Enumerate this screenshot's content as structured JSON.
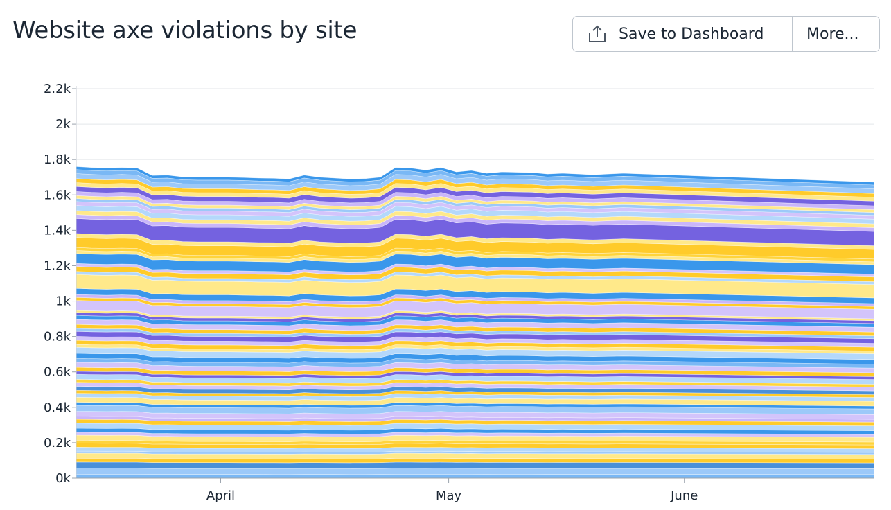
{
  "header": {
    "title": "Website axe violations by site",
    "save_label": "Save to Dashboard",
    "more_label": "More...",
    "save_icon": "upload-icon"
  },
  "chart_data": {
    "type": "area",
    "stacked": true,
    "title": "Website axe violations by site",
    "xlabel": "",
    "ylabel": "",
    "ylim": [
      0,
      2200
    ],
    "yticks": [
      {
        "value": 0,
        "label": "0k"
      },
      {
        "value": 200,
        "label": "0.2k"
      },
      {
        "value": 400,
        "label": "0.4k"
      },
      {
        "value": 600,
        "label": "0.6k"
      },
      {
        "value": 800,
        "label": "0.8k"
      },
      {
        "value": 1000,
        "label": "1k"
      },
      {
        "value": 1200,
        "label": "1.2k"
      },
      {
        "value": 1400,
        "label": "1.4k"
      },
      {
        "value": 1600,
        "label": "1.6k"
      },
      {
        "value": 1800,
        "label": "1.8k"
      },
      {
        "value": 2000,
        "label": "2k"
      },
      {
        "value": 2200,
        "label": "2.2k"
      }
    ],
    "xlim": [
      "2023-03-13",
      "2023-06-26"
    ],
    "xticks": [
      {
        "value": "2023-04-01",
        "label": "April"
      },
      {
        "value": "2023-05-01",
        "label": "May"
      },
      {
        "value": "2023-06-01",
        "label": "June"
      }
    ],
    "grid": true,
    "legend": "none",
    "x": [
      "2023-03-13",
      "2023-03-15",
      "2023-03-17",
      "2023-03-19",
      "2023-03-21",
      "2023-03-23",
      "2023-03-25",
      "2023-03-27",
      "2023-03-29",
      "2023-03-31",
      "2023-04-02",
      "2023-04-04",
      "2023-04-06",
      "2023-04-08",
      "2023-04-10",
      "2023-04-12",
      "2023-04-14",
      "2023-04-16",
      "2023-04-18",
      "2023-04-20",
      "2023-04-22",
      "2023-04-24",
      "2023-04-26",
      "2023-04-28",
      "2023-04-30",
      "2023-05-02",
      "2023-05-04",
      "2023-05-06",
      "2023-05-08",
      "2023-05-10",
      "2023-05-12",
      "2023-05-14",
      "2023-05-16",
      "2023-05-18",
      "2023-05-20",
      "2023-05-22",
      "2023-05-24",
      "2023-06-26"
    ],
    "total": [
      1760,
      1755,
      1752,
      1755,
      1752,
      1710,
      1712,
      1702,
      1700,
      1700,
      1700,
      1698,
      1695,
      1694,
      1690,
      1712,
      1700,
      1695,
      1690,
      1692,
      1700,
      1755,
      1752,
      1740,
      1755,
      1730,
      1738,
      1722,
      1730,
      1728,
      1726,
      1718,
      1722,
      1718,
      1714,
      1718,
      1722,
      1672
    ],
    "palette": [
      "#4a90d9",
      "#7ab8f5",
      "#9cc9f9",
      "#ffcb2a",
      "#ffe98a",
      "#3a97eb",
      "#d3c4fb",
      "#b4d8fb",
      "#7462e0",
      "#ffd43b",
      "#c9b6fa"
    ],
    "band_weights": [
      4,
      6,
      6,
      4,
      5,
      2,
      4,
      4,
      3,
      5,
      3,
      4,
      5,
      4,
      3,
      5,
      6,
      3,
      5,
      4,
      3,
      4,
      4,
      3,
      5,
      3,
      4,
      5,
      4,
      5,
      6,
      3,
      4,
      4,
      5,
      3,
      4,
      5,
      4,
      3,
      2,
      10,
      3,
      3,
      6,
      14,
      3,
      5,
      3,
      10,
      3,
      3,
      10,
      4,
      15,
      4,
      4,
      5,
      4,
      3,
      3,
      4,
      5,
      4,
      4,
      5,
      4,
      3
    ],
    "band_colors": [
      1,
      2,
      0,
      3,
      4,
      2,
      7,
      3,
      9,
      4,
      6,
      5,
      7,
      3,
      10,
      6,
      2,
      5,
      4,
      7,
      3,
      0,
      6,
      9,
      7,
      8,
      3,
      6,
      1,
      5,
      7,
      4,
      3,
      6,
      8,
      2,
      3,
      6,
      5,
      8,
      4,
      6,
      3,
      10,
      5,
      4,
      7,
      3,
      6,
      5,
      4,
      9,
      3,
      4,
      8,
      10,
      4,
      7,
      6,
      2,
      4,
      10,
      8,
      4,
      3,
      2,
      1,
      5
    ]
  }
}
